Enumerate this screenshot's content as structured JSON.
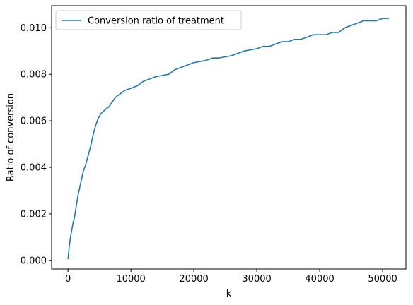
{
  "chart_data": {
    "type": "line",
    "title": "",
    "xlabel": "k",
    "ylabel": "Ratio of conversion",
    "xlim": [
      -2600,
      53700
    ],
    "ylim": [
      -0.00037,
      0.01095
    ],
    "xticks": [
      0,
      10000,
      20000,
      30000,
      40000,
      50000
    ],
    "xtick_labels": [
      "0",
      "10000",
      "20000",
      "30000",
      "40000",
      "50000"
    ],
    "yticks": [
      0.0,
      0.002,
      0.004,
      0.006,
      0.008,
      0.01
    ],
    "ytick_labels": [
      "0.000",
      "0.002",
      "0.004",
      "0.006",
      "0.008",
      "0.010"
    ],
    "grid": false,
    "legend_position": "upper-left",
    "series": [
      {
        "name": "Conversion ratio of treatment",
        "color": "#1f77b4",
        "x": [
          0,
          200,
          400,
          600,
          800,
          1000,
          1300,
          1600,
          2000,
          2400,
          2800,
          3200,
          3600,
          4000,
          4400,
          4800,
          5200,
          5600,
          6000,
          6500,
          7000,
          7500,
          8000,
          8500,
          9000,
          10000,
          11000,
          12000,
          13000,
          14000,
          15000,
          16000,
          17000,
          18000,
          19000,
          20000,
          21000,
          22000,
          23000,
          24000,
          25000,
          26000,
          27000,
          28000,
          29000,
          30000,
          31000,
          32000,
          33000,
          34000,
          35000,
          36000,
          37000,
          38000,
          39000,
          40000,
          41000,
          42000,
          43000,
          44000,
          45000,
          46000,
          47000,
          48000,
          49000,
          50000,
          51000
        ],
        "y": [
          5e-05,
          0.0006,
          0.001,
          0.0013,
          0.0016,
          0.0018,
          0.0023,
          0.0028,
          0.0033,
          0.0038,
          0.0041,
          0.0045,
          0.0049,
          0.0054,
          0.0058,
          0.0061,
          0.0063,
          0.0064,
          0.0065,
          0.0066,
          0.0068,
          0.007,
          0.0071,
          0.0072,
          0.0073,
          0.0074,
          0.0075,
          0.0077,
          0.0078,
          0.0079,
          0.00795,
          0.008,
          0.0082,
          0.0083,
          0.0084,
          0.0085,
          0.00855,
          0.0086,
          0.0087,
          0.0087,
          0.00875,
          0.0088,
          0.0089,
          0.009,
          0.00905,
          0.0091,
          0.0092,
          0.0092,
          0.0093,
          0.0094,
          0.0094,
          0.0095,
          0.0095,
          0.0096,
          0.0097,
          0.0097,
          0.0097,
          0.0098,
          0.0098,
          0.01,
          0.0101,
          0.0102,
          0.0103,
          0.0103,
          0.0103,
          0.0104,
          0.0104
        ]
      }
    ]
  }
}
